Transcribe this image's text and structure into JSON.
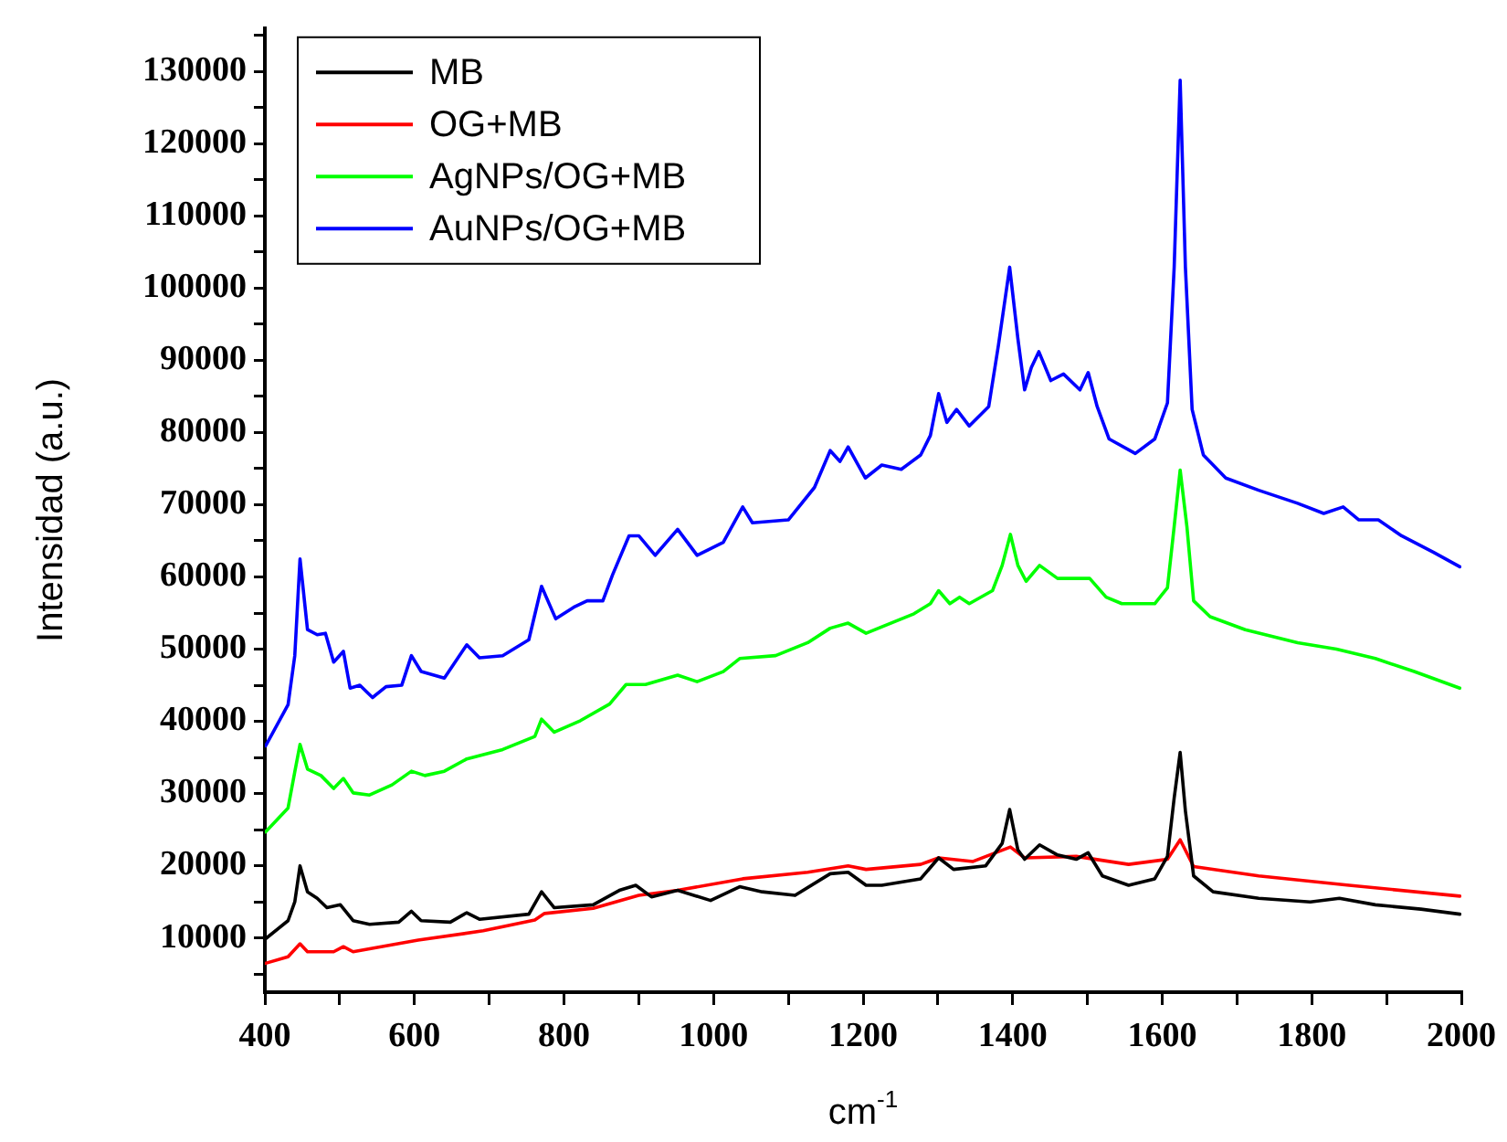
{
  "chart_data": {
    "type": "line",
    "xlabel": "cm$^{-1}$",
    "ylabel": "Intensidad (a.u.)",
    "legend": "top left",
    "grid": false,
    "marker": "none",
    "line_style": "solid",
    "xlim": [
      400,
      2000
    ],
    "ylim": [
      2500,
      136000
    ],
    "xticks": [
      400,
      {
        "value": 500,
        "label": null
      },
      600,
      {
        "value": 700,
        "label": null
      },
      800,
      {
        "value": 900,
        "label": null
      },
      1000,
      {
        "value": 1100,
        "label": null
      },
      1200,
      {
        "value": 1300,
        "label": null
      },
      1400,
      {
        "value": 1500,
        "label": null
      },
      1600,
      {
        "value": 1700,
        "label": null
      },
      1800,
      {
        "value": 1900,
        "label": null
      },
      2000
    ],
    "yticks": [
      {
        "value": 5000,
        "label": null
      },
      10000,
      {
        "value": 15000,
        "label": null
      },
      20000,
      {
        "value": 25000,
        "label": null
      },
      30000,
      {
        "value": 35000,
        "label": null
      },
      40000,
      {
        "value": 45000,
        "label": null
      },
      50000,
      {
        "value": 55000,
        "label": null
      },
      60000,
      {
        "value": 65000,
        "label": null
      },
      70000,
      {
        "value": 75000,
        "label": null
      },
      80000,
      {
        "value": 85000,
        "label": null
      },
      90000,
      {
        "value": 95000,
        "label": null
      },
      100000,
      {
        "value": 105000,
        "label": null
      },
      110000,
      {
        "value": 115000,
        "label": null
      },
      120000,
      {
        "value": 125000,
        "label": null
      },
      130000,
      {
        "value": 135000,
        "label": null
      }
    ],
    "series": [
      {
        "name": "MB",
        "color": "#000000",
        "x": [
          401,
          431,
          440,
          447,
          457,
          470,
          483,
          501,
          518,
          540,
          579,
          596,
          609,
          648,
          670,
          687,
          753,
          770,
          787,
          839,
          874,
          896,
          917,
          952,
          996,
          1035,
          1065,
          1109,
          1156,
          1180,
          1204,
          1225,
          1277,
          1301,
          1321,
          1364,
          1386,
          1396,
          1407,
          1416,
          1436,
          1460,
          1485,
          1501,
          1520,
          1555,
          1590,
          1607,
          1616,
          1624,
          1631,
          1642,
          1668,
          1729,
          1798,
          1837,
          1885,
          1946,
          1998
        ],
        "values": [
          9900,
          12400,
          15000,
          20000,
          16400,
          15500,
          14200,
          14600,
          12400,
          11900,
          12200,
          13700,
          12400,
          12200,
          13500,
          12600,
          13300,
          16400,
          14200,
          14600,
          16600,
          17300,
          15700,
          16600,
          15200,
          17100,
          16400,
          15900,
          18900,
          19100,
          17300,
          17300,
          18200,
          21100,
          19500,
          20000,
          23100,
          27800,
          22200,
          20900,
          22900,
          21500,
          20900,
          21800,
          18600,
          17300,
          18200,
          21300,
          29400,
          35700,
          27600,
          18600,
          16400,
          15500,
          15000,
          15500,
          14600,
          14000,
          13300
        ]
      },
      {
        "name": "OG+MB",
        "color": "#ff0000",
        "x": [
          401,
          431,
          447,
          457,
          492,
          505,
          518,
          605,
          692,
          761,
          774,
          839,
          900,
          952,
          1039,
          1126,
          1180,
          1204,
          1277,
          1301,
          1347,
          1397,
          1416,
          1485,
          1555,
          1607,
          1624,
          1642,
          1729,
          1850,
          1998
        ],
        "values": [
          6500,
          7400,
          9200,
          8100,
          8100,
          8800,
          8100,
          9700,
          11000,
          12500,
          13400,
          14100,
          15900,
          16600,
          18200,
          19100,
          20000,
          19500,
          20200,
          21100,
          20600,
          22600,
          21100,
          21300,
          20200,
          20900,
          23600,
          19900,
          18600,
          17300,
          15800
        ]
      },
      {
        "name": "AgNPs/OG+MB",
        "color": "#00ff00",
        "x": [
          401,
          431,
          440,
          447,
          457,
          475,
          492,
          505,
          518,
          540,
          570,
          596,
          614,
          640,
          670,
          718,
          761,
          770,
          787,
          822,
          861,
          883,
          909,
          952,
          978,
          1013,
          1035,
          1083,
          1126,
          1156,
          1180,
          1204,
          1225,
          1268,
          1290,
          1301,
          1316,
          1329,
          1342,
          1373,
          1386,
          1397,
          1407,
          1418,
          1436,
          1460,
          1485,
          1503,
          1525,
          1546,
          1590,
          1607,
          1616,
          1624,
          1633,
          1642,
          1664,
          1711,
          1781,
          1833,
          1885,
          1937,
          1998
        ],
        "values": [
          24700,
          28000,
          33000,
          36800,
          33400,
          32500,
          30700,
          32100,
          30100,
          29800,
          31200,
          33100,
          32500,
          33100,
          34800,
          36100,
          37900,
          40300,
          38500,
          40100,
          42400,
          45100,
          45100,
          46400,
          45500,
          46900,
          48700,
          49100,
          50900,
          52900,
          53600,
          52200,
          53100,
          54900,
          56300,
          58100,
          56300,
          57200,
          56300,
          58100,
          61600,
          65900,
          61600,
          59400,
          61600,
          59800,
          59800,
          59800,
          57200,
          56300,
          56300,
          58500,
          67000,
          74800,
          67000,
          56700,
          54500,
          52700,
          50900,
          50000,
          48700,
          46900,
          44600
        ]
      },
      {
        "name": "AuNPs/OG+MB",
        "color": "#0000ff",
        "x": [
          401,
          431,
          440,
          447,
          457,
          470,
          481,
          492,
          505,
          514,
          527,
          544,
          562,
          583,
          596,
          609,
          640,
          670,
          687,
          718,
          753,
          770,
          789,
          813,
          831,
          852,
          865,
          887,
          900,
          922,
          952,
          978,
          1013,
          1039,
          1052,
          1100,
          1135,
          1156,
          1169,
          1180,
          1203,
          1225,
          1251,
          1277,
          1290,
          1301,
          1312,
          1325,
          1342,
          1368,
          1381,
          1396,
          1407,
          1416,
          1425,
          1435,
          1451,
          1468,
          1490,
          1501,
          1513,
          1529,
          1564,
          1590,
          1607,
          1616,
          1624,
          1631,
          1640,
          1655,
          1685,
          1729,
          1781,
          1816,
          1842,
          1863,
          1889,
          1920,
          1963,
          1998
        ],
        "values": [
          36600,
          42300,
          49100,
          62500,
          52700,
          52000,
          52200,
          48200,
          49700,
          44600,
          45000,
          43300,
          44800,
          45000,
          49100,
          46900,
          46000,
          50600,
          48800,
          49100,
          51300,
          58700,
          54200,
          55800,
          56700,
          56700,
          60300,
          65700,
          65700,
          63000,
          66600,
          63000,
          64800,
          69700,
          67500,
          67900,
          72400,
          77500,
          76000,
          78000,
          73700,
          75500,
          74900,
          76900,
          79600,
          85400,
          81400,
          83200,
          80900,
          83600,
          92100,
          102900,
          93000,
          85900,
          89000,
          91200,
          87200,
          88100,
          85900,
          88300,
          83600,
          79100,
          77100,
          79100,
          84100,
          102900,
          128800,
          102900,
          83200,
          76900,
          73700,
          72000,
          70200,
          68800,
          69700,
          67900,
          67900,
          65700,
          63400,
          61400
        ]
      }
    ]
  }
}
